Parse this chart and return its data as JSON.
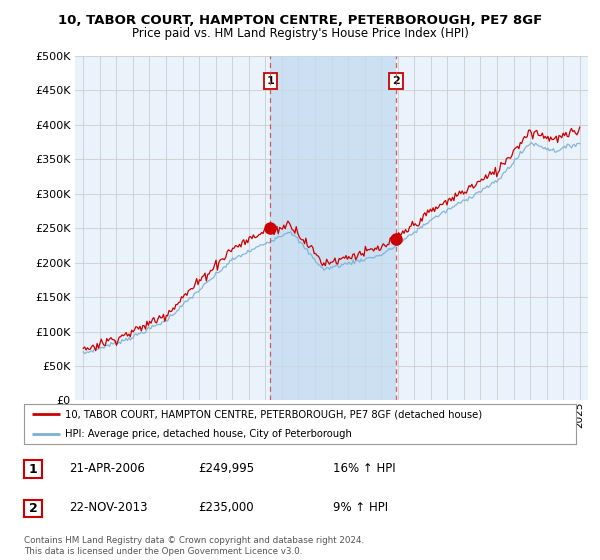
{
  "title_line1": "10, TABOR COURT, HAMPTON CENTRE, PETERBOROUGH, PE7 8GF",
  "title_line2": "Price paid vs. HM Land Registry's House Price Index (HPI)",
  "bg_color": "#eaf2fb",
  "highlight_color": "#d0e5f7",
  "grid_color": "#cccccc",
  "red_line_color": "#cc0000",
  "blue_line_color": "#7bafd4",
  "sale1_price": 249995,
  "sale1_year": 2006.3,
  "sale2_price": 235000,
  "sale2_year": 2013.9,
  "legend_line1": "10, TABOR COURT, HAMPTON CENTRE, PETERBOROUGH, PE7 8GF (detached house)",
  "legend_line2": "HPI: Average price, detached house, City of Peterborough",
  "annotation1_date": "21-APR-2006",
  "annotation1_price": "£249,995",
  "annotation1_hpi": "16% ↑ HPI",
  "annotation2_date": "22-NOV-2013",
  "annotation2_price": "£235,000",
  "annotation2_hpi": "9% ↑ HPI",
  "footer": "Contains HM Land Registry data © Crown copyright and database right 2024.\nThis data is licensed under the Open Government Licence v3.0.",
  "ylim": [
    0,
    500000
  ],
  "yticks": [
    0,
    50000,
    100000,
    150000,
    200000,
    250000,
    300000,
    350000,
    400000,
    450000,
    500000
  ],
  "xlim_start": 1994.5,
  "xlim_end": 2025.5
}
